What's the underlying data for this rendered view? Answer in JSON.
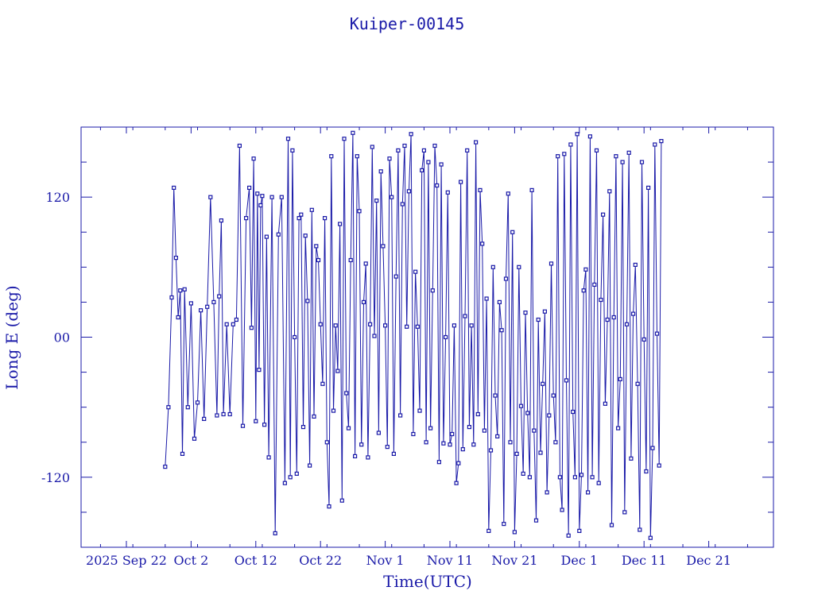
{
  "chart_data": {
    "type": "line",
    "title": "Kuiper-00145",
    "xlabel": "Time(UTC)",
    "ylabel": "Long E (deg)",
    "ylim": [
      -180,
      180
    ],
    "xlim_days_label_basis": "2025-09-15 .. 2025-12-30",
    "x_ticks": [
      {
        "date": "2025-09-22",
        "label": "2025 Sep 22"
      },
      {
        "date": "2025-10-02",
        "label": "Oct  2"
      },
      {
        "date": "2025-10-12",
        "label": "Oct 12"
      },
      {
        "date": "2025-10-22",
        "label": "Oct 22"
      },
      {
        "date": "2025-11-01",
        "label": "Nov  1"
      },
      {
        "date": "2025-11-11",
        "label": "Nov 11"
      },
      {
        "date": "2025-11-21",
        "label": "Nov 21"
      },
      {
        "date": "2025-12-01",
        "label": "Dec  1"
      },
      {
        "date": "2025-12-11",
        "label": "Dec 11"
      },
      {
        "date": "2025-12-21",
        "label": "Dec 21"
      }
    ],
    "y_ticks": [
      {
        "value": 120,
        "label": "120"
      },
      {
        "value": 0,
        "label": "00"
      },
      {
        "value": -120,
        "label": "-120"
      }
    ],
    "series": [
      {
        "color": "#1a1aa8",
        "points": [
          [
            "2025-09-28",
            -111
          ],
          [
            "2025-09-28",
            -60
          ],
          [
            "2025-09-29",
            34
          ],
          [
            "2025-09-29",
            128
          ],
          [
            "2025-09-29",
            68
          ],
          [
            "2025-09-30",
            17
          ],
          [
            "2025-09-30",
            40
          ],
          [
            "2025-09-30",
            -100
          ],
          [
            "2025-10-01",
            41
          ],
          [
            "2025-10-01",
            -60
          ],
          [
            "2025-10-02",
            29
          ],
          [
            "2025-10-02",
            -87
          ],
          [
            "2025-10-03",
            -56
          ],
          [
            "2025-10-03",
            23
          ],
          [
            "2025-10-04",
            -70
          ],
          [
            "2025-10-04",
            26
          ],
          [
            "2025-10-05",
            120
          ],
          [
            "2025-10-05",
            30
          ],
          [
            "2025-10-06",
            -67
          ],
          [
            "2025-10-06",
            35
          ],
          [
            "2025-10-06",
            100
          ],
          [
            "2025-10-07",
            -66
          ],
          [
            "2025-10-07",
            11
          ],
          [
            "2025-10-08",
            -66
          ],
          [
            "2025-10-08",
            11
          ],
          [
            "2025-10-09",
            15
          ],
          [
            "2025-10-09",
            164
          ],
          [
            "2025-10-10",
            -76
          ],
          [
            "2025-10-10",
            102
          ],
          [
            "2025-10-11",
            128
          ],
          [
            "2025-10-11",
            8
          ],
          [
            "2025-10-11",
            153
          ],
          [
            "2025-10-12",
            -72
          ],
          [
            "2025-10-12",
            123
          ],
          [
            "2025-10-12",
            -28
          ],
          [
            "2025-10-12",
            113
          ],
          [
            "2025-10-13",
            121
          ],
          [
            "2025-10-13",
            -75
          ],
          [
            "2025-10-13",
            86
          ],
          [
            "2025-10-14",
            -103
          ],
          [
            "2025-10-14",
            120
          ],
          [
            "2025-10-15",
            -168
          ],
          [
            "2025-10-15",
            88
          ],
          [
            "2025-10-16",
            120
          ],
          [
            "2025-10-16",
            -125
          ],
          [
            "2025-10-17",
            170
          ],
          [
            "2025-10-17",
            -120
          ],
          [
            "2025-10-17",
            160
          ],
          [
            "2025-10-18",
            0
          ],
          [
            "2025-10-18",
            -117
          ],
          [
            "2025-10-18",
            102
          ],
          [
            "2025-10-19",
            105
          ],
          [
            "2025-10-19",
            -77
          ],
          [
            "2025-10-19",
            87
          ],
          [
            "2025-10-20",
            31
          ],
          [
            "2025-10-20",
            -110
          ],
          [
            "2025-10-20",
            109
          ],
          [
            "2025-10-21",
            -68
          ],
          [
            "2025-10-21",
            78
          ],
          [
            "2025-10-21",
            66
          ],
          [
            "2025-10-22",
            11
          ],
          [
            "2025-10-22",
            -40
          ],
          [
            "2025-10-22",
            102
          ],
          [
            "2025-10-23",
            -90
          ],
          [
            "2025-10-23",
            -145
          ],
          [
            "2025-10-23",
            155
          ],
          [
            "2025-10-24",
            -63
          ],
          [
            "2025-10-24",
            10
          ],
          [
            "2025-10-24",
            -29
          ],
          [
            "2025-10-25",
            97
          ],
          [
            "2025-10-25",
            -140
          ],
          [
            "2025-10-25",
            170
          ],
          [
            "2025-10-26",
            -48
          ],
          [
            "2025-10-26",
            -78
          ],
          [
            "2025-10-26",
            66
          ],
          [
            "2025-10-27",
            175
          ],
          [
            "2025-10-27",
            -102
          ],
          [
            "2025-10-27",
            155
          ],
          [
            "2025-10-28",
            108
          ],
          [
            "2025-10-28",
            -92
          ],
          [
            "2025-10-28",
            30
          ],
          [
            "2025-10-29",
            63
          ],
          [
            "2025-10-29",
            -103
          ],
          [
            "2025-10-29",
            11
          ],
          [
            "2025-10-30",
            163
          ],
          [
            "2025-10-30",
            1
          ],
          [
            "2025-10-30",
            117
          ],
          [
            "2025-10-31",
            -82
          ],
          [
            "2025-10-31",
            142
          ],
          [
            "2025-10-31",
            78
          ],
          [
            "2025-11-01",
            10
          ],
          [
            "2025-11-01",
            -94
          ],
          [
            "2025-11-01",
            153
          ],
          [
            "2025-11-02",
            120
          ],
          [
            "2025-11-02",
            -100
          ],
          [
            "2025-11-02",
            52
          ],
          [
            "2025-11-03",
            160
          ],
          [
            "2025-11-03",
            -67
          ],
          [
            "2025-11-03",
            114
          ],
          [
            "2025-11-04",
            164
          ],
          [
            "2025-11-04",
            9
          ],
          [
            "2025-11-04",
            125
          ],
          [
            "2025-11-05",
            174
          ],
          [
            "2025-11-05",
            -83
          ],
          [
            "2025-11-05",
            56
          ],
          [
            "2025-11-06",
            9
          ],
          [
            "2025-11-06",
            -63
          ],
          [
            "2025-11-06",
            143
          ],
          [
            "2025-11-07",
            160
          ],
          [
            "2025-11-07",
            -90
          ],
          [
            "2025-11-07",
            150
          ],
          [
            "2025-11-08",
            -78
          ],
          [
            "2025-11-08",
            40
          ],
          [
            "2025-11-08",
            164
          ],
          [
            "2025-11-09",
            130
          ],
          [
            "2025-11-09",
            -107
          ],
          [
            "2025-11-09",
            148
          ],
          [
            "2025-11-10",
            -91
          ],
          [
            "2025-11-10",
            0
          ],
          [
            "2025-11-10",
            124
          ],
          [
            "2025-11-11",
            -92
          ],
          [
            "2025-11-11",
            -83
          ],
          [
            "2025-11-11",
            10
          ],
          [
            "2025-11-12",
            -125
          ],
          [
            "2025-11-12",
            -108
          ],
          [
            "2025-11-12",
            133
          ],
          [
            "2025-11-13",
            -96
          ],
          [
            "2025-11-13",
            18
          ],
          [
            "2025-11-13",
            160
          ],
          [
            "2025-11-14",
            -77
          ],
          [
            "2025-11-14",
            10
          ],
          [
            "2025-11-14",
            -92
          ],
          [
            "2025-11-15",
            167
          ],
          [
            "2025-11-15",
            -66
          ],
          [
            "2025-11-15",
            126
          ],
          [
            "2025-11-16",
            80
          ],
          [
            "2025-11-16",
            -80
          ],
          [
            "2025-11-16",
            33
          ],
          [
            "2025-11-17",
            -166
          ],
          [
            "2025-11-17",
            -97
          ],
          [
            "2025-11-17",
            60
          ],
          [
            "2025-11-18",
            -50
          ],
          [
            "2025-11-18",
            -85
          ],
          [
            "2025-11-18",
            30
          ],
          [
            "2025-11-19",
            6
          ],
          [
            "2025-11-19",
            -160
          ],
          [
            "2025-11-19",
            50
          ],
          [
            "2025-11-20",
            123
          ],
          [
            "2025-11-20",
            -90
          ],
          [
            "2025-11-20",
            90
          ],
          [
            "2025-11-21",
            -167
          ],
          [
            "2025-11-21",
            -100
          ],
          [
            "2025-11-21",
            60
          ],
          [
            "2025-11-22",
            -59
          ],
          [
            "2025-11-22",
            -117
          ],
          [
            "2025-11-22",
            21
          ],
          [
            "2025-11-23",
            -65
          ],
          [
            "2025-11-23",
            -120
          ],
          [
            "2025-11-23",
            126
          ],
          [
            "2025-11-24",
            -80
          ],
          [
            "2025-11-24",
            -157
          ],
          [
            "2025-11-24",
            15
          ],
          [
            "2025-11-25",
            -99
          ],
          [
            "2025-11-25",
            -40
          ],
          [
            "2025-11-25",
            22
          ],
          [
            "2025-11-26",
            -133
          ],
          [
            "2025-11-26",
            -67
          ],
          [
            "2025-11-26",
            63
          ],
          [
            "2025-11-27",
            -50
          ],
          [
            "2025-11-27",
            -90
          ],
          [
            "2025-11-27",
            155
          ],
          [
            "2025-11-28",
            -120
          ],
          [
            "2025-11-28",
            -148
          ],
          [
            "2025-11-28",
            157
          ],
          [
            "2025-11-29",
            -37
          ],
          [
            "2025-11-29",
            -170
          ],
          [
            "2025-11-29",
            165
          ],
          [
            "2025-11-30",
            -64
          ],
          [
            "2025-11-30",
            -120
          ],
          [
            "2025-11-30",
            174
          ],
          [
            "2025-12-01",
            -166
          ],
          [
            "2025-12-01",
            -118
          ],
          [
            "2025-12-01",
            40
          ],
          [
            "2025-12-02",
            58
          ],
          [
            "2025-12-02",
            -133
          ],
          [
            "2025-12-02",
            172
          ],
          [
            "2025-12-03",
            -120
          ],
          [
            "2025-12-03",
            45
          ],
          [
            "2025-12-03",
            160
          ],
          [
            "2025-12-04",
            -125
          ],
          [
            "2025-12-04",
            32
          ],
          [
            "2025-12-04",
            105
          ],
          [
            "2025-12-05",
            -57
          ],
          [
            "2025-12-05",
            15
          ],
          [
            "2025-12-05",
            125
          ],
          [
            "2025-12-06",
            -161
          ],
          [
            "2025-12-06",
            17
          ],
          [
            "2025-12-06",
            155
          ],
          [
            "2025-12-07",
            -78
          ],
          [
            "2025-12-07",
            -36
          ],
          [
            "2025-12-07",
            150
          ],
          [
            "2025-12-08",
            -150
          ],
          [
            "2025-12-08",
            11
          ],
          [
            "2025-12-08",
            158
          ],
          [
            "2025-12-09",
            -104
          ],
          [
            "2025-12-09",
            20
          ],
          [
            "2025-12-09",
            62
          ],
          [
            "2025-12-10",
            -40
          ],
          [
            "2025-12-10",
            -165
          ],
          [
            "2025-12-10",
            150
          ],
          [
            "2025-12-11",
            -2
          ],
          [
            "2025-12-11",
            -115
          ],
          [
            "2025-12-11",
            128
          ],
          [
            "2025-12-12",
            -172
          ],
          [
            "2025-12-12",
            -95
          ],
          [
            "2025-12-12",
            165
          ],
          [
            "2025-12-13",
            3
          ],
          [
            "2025-12-13",
            -110
          ],
          [
            "2025-12-13",
            168
          ]
        ]
      }
    ]
  }
}
